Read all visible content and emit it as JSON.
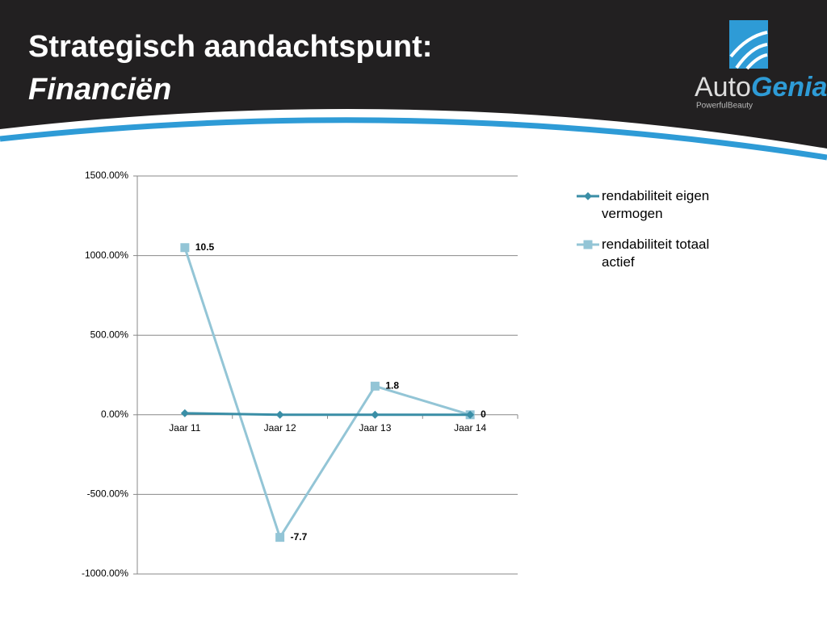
{
  "header": {
    "title": "Strategisch aandachtspunt:",
    "subtitle": "Financiën"
  },
  "logo": {
    "name_part1": "Auto",
    "name_part2": "Genia",
    "tagline": "PowerfulBeauty"
  },
  "chart_data": {
    "type": "line",
    "categories": [
      "Jaar 11",
      "Jaar 12",
      "Jaar 13",
      "Jaar 14"
    ],
    "series": [
      {
        "name": "rendabiliteit eigen vermogen",
        "color": "#3a8ea6",
        "marker": "diamond",
        "values": [
          10,
          0,
          0,
          0
        ]
      },
      {
        "name": "rendabiliteit totaal actief",
        "color": "#93c5d6",
        "marker": "square",
        "values": [
          1050,
          -770,
          180,
          0
        ],
        "value_labels": [
          "10.5",
          "-7.7",
          "1.8",
          "0"
        ]
      }
    ],
    "ylim": [
      -1000,
      1500
    ],
    "yticks": [
      {
        "value": -1000,
        "label": "-1000.00%"
      },
      {
        "value": -500,
        "label": "-500.00%"
      },
      {
        "value": 0,
        "label": "0.00%"
      },
      {
        "value": 500,
        "label": "500.00%"
      },
      {
        "value": 1000,
        "label": "1000.00%"
      },
      {
        "value": 1500,
        "label": "1500.00%"
      }
    ],
    "grid": true,
    "legend": "right"
  }
}
